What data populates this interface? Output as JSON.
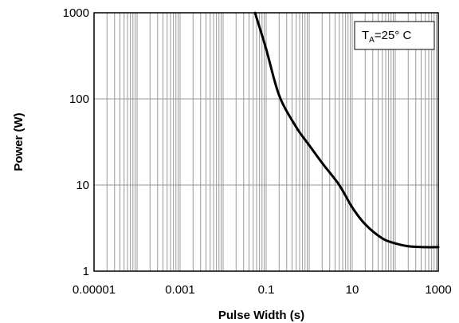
{
  "chart_data": {
    "type": "line",
    "xscale": "log",
    "yscale": "log",
    "xlim": [
      1e-05,
      1000
    ],
    "ylim": [
      1,
      1000
    ],
    "xlabel": "Pulse Width (s)",
    "ylabel": "Power (W)",
    "grid": true,
    "xticks": [
      1e-05,
      0.001,
      0.1,
      10,
      1000
    ],
    "xtick_labels": [
      "0.00001",
      "0.001",
      "0.1",
      "10",
      "1000"
    ],
    "yticks": [
      1,
      10,
      100,
      1000
    ],
    "ytick_labels": [
      "1",
      "10",
      "100",
      "1000"
    ],
    "annotation": {
      "prefix": "T",
      "subscript": "A",
      "suffix": "=25° C"
    },
    "series": [
      {
        "line_color": "#000000",
        "x": [
          0.055,
          0.1,
          0.2,
          0.5,
          1,
          2,
          5,
          10,
          20,
          50,
          100,
          200,
          500,
          1000
        ],
        "y": [
          1000,
          380,
          110,
          47,
          29,
          18,
          10,
          5.5,
          3.5,
          2.4,
          2.1,
          1.95,
          1.9,
          1.9
        ]
      }
    ],
    "colors": {
      "grid": "#999999",
      "frame": "#000000",
      "legend_border": "#000000",
      "legend_bg": "#ffffff"
    }
  }
}
